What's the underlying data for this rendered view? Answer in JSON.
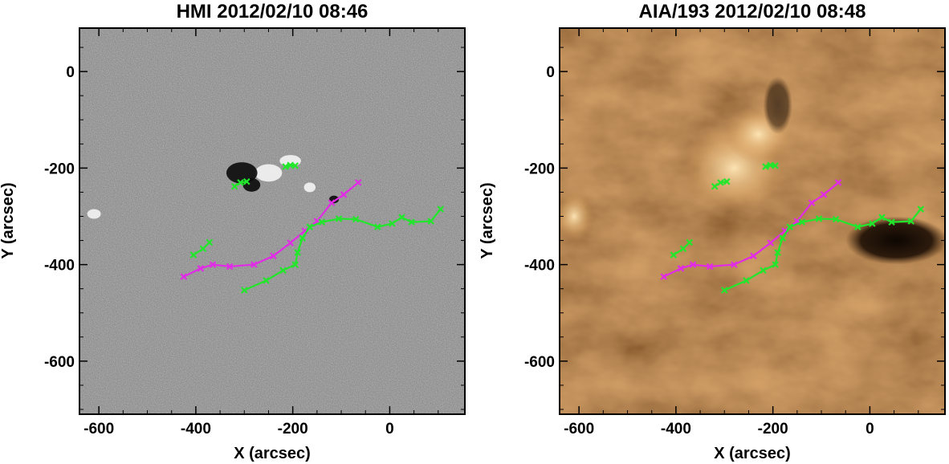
{
  "figure": {
    "panels": [
      {
        "title": "HMI 2012/02/10 08:46",
        "xlabel": "X (arcsec)",
        "ylabel": "Y (arcsec)",
        "xticks": [
          "-600",
          "-400",
          "-200",
          "0"
        ],
        "yticks": [
          "0",
          "-200",
          "-400",
          "-600"
        ],
        "background": "magnetogram",
        "colors": {
          "bg": "#808080",
          "light": "#f4f4f4",
          "dark": "#0a0a0a"
        }
      },
      {
        "title": "AIA/193 2012/02/10 08:48",
        "xlabel": "X (arcsec)",
        "ylabel": "Y (arcsec)",
        "xticks": [
          "-600",
          "-400",
          "-200",
          "0"
        ],
        "yticks": [
          "0",
          "-200",
          "-400",
          "-600"
        ],
        "background": "euv-193",
        "colors": {
          "bg": "#a9703a",
          "light": "#f2d39e",
          "dark": "#1a0c03"
        }
      }
    ]
  },
  "chart_data": {
    "type": "line",
    "xlim": [
      -640,
      155
    ],
    "ylim": [
      -710,
      90
    ],
    "grid": false,
    "colors": {
      "magenta": "#e22be6",
      "green": "#22e62b"
    },
    "series": [
      {
        "color": "magenta",
        "points": [
          [
            -425,
            -425
          ],
          [
            -390,
            -408
          ],
          [
            -365,
            -400
          ],
          [
            -330,
            -404
          ],
          [
            -280,
            -400
          ],
          [
            -240,
            -382
          ],
          [
            -205,
            -355
          ],
          [
            -175,
            -330
          ],
          [
            -150,
            -310
          ],
          [
            -120,
            -272
          ],
          [
            -95,
            -255
          ],
          [
            -65,
            -230
          ]
        ]
      },
      {
        "color": "green",
        "points": [
          [
            -300,
            -453
          ],
          [
            -255,
            -433
          ],
          [
            -220,
            -412
          ],
          [
            -195,
            -400
          ],
          [
            -190,
            -375
          ],
          [
            -180,
            -345
          ],
          [
            -165,
            -322
          ],
          [
            -140,
            -312
          ],
          [
            -105,
            -305
          ],
          [
            -70,
            -306
          ],
          [
            -25,
            -322
          ],
          [
            5,
            -315
          ],
          [
            25,
            -302
          ],
          [
            45,
            -312
          ],
          [
            85,
            -310
          ],
          [
            105,
            -285
          ]
        ]
      },
      {
        "color": "green",
        "points": [
          [
            -405,
            -380
          ],
          [
            -385,
            -367
          ],
          [
            -372,
            -354
          ]
        ]
      },
      {
        "color": "green",
        "points": [
          [
            -320,
            -238
          ],
          [
            -308,
            -230
          ],
          [
            -295,
            -228
          ]
        ]
      },
      {
        "color": "green",
        "points": [
          [
            -215,
            -197
          ],
          [
            -205,
            -194
          ],
          [
            -195,
            -195
          ]
        ]
      }
    ]
  }
}
